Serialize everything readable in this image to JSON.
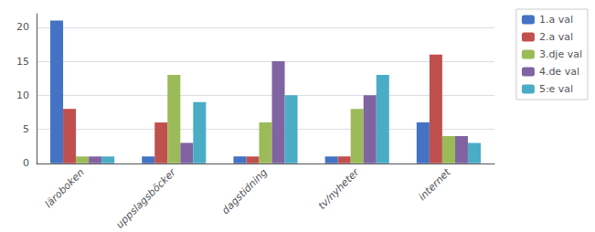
{
  "chart_data": {
    "type": "bar",
    "categories": [
      "läroboken",
      "uppslagsböcker",
      "dagstidning",
      "tv/nyheter",
      "internet"
    ],
    "series": [
      {
        "name": "1.a val",
        "color": "#4472C4",
        "values": [
          21,
          1,
          1,
          1,
          6
        ]
      },
      {
        "name": "2.a val",
        "color": "#C0504D",
        "values": [
          8,
          6,
          1,
          1,
          16
        ]
      },
      {
        "name": "3.dje val",
        "color": "#9BBB59",
        "values": [
          1,
          13,
          6,
          8,
          4
        ]
      },
      {
        "name": "4.de val",
        "color": "#8064A2",
        "values": [
          1,
          3,
          15,
          10,
          4
        ]
      },
      {
        "name": "5:e val",
        "color": "#4BACC6",
        "values": [
          1,
          9,
          10,
          13,
          3
        ]
      }
    ],
    "ylim": [
      0,
      22
    ],
    "yticks": [
      0,
      5,
      10,
      15,
      20
    ],
    "grid": true,
    "legend": "upper right"
  }
}
